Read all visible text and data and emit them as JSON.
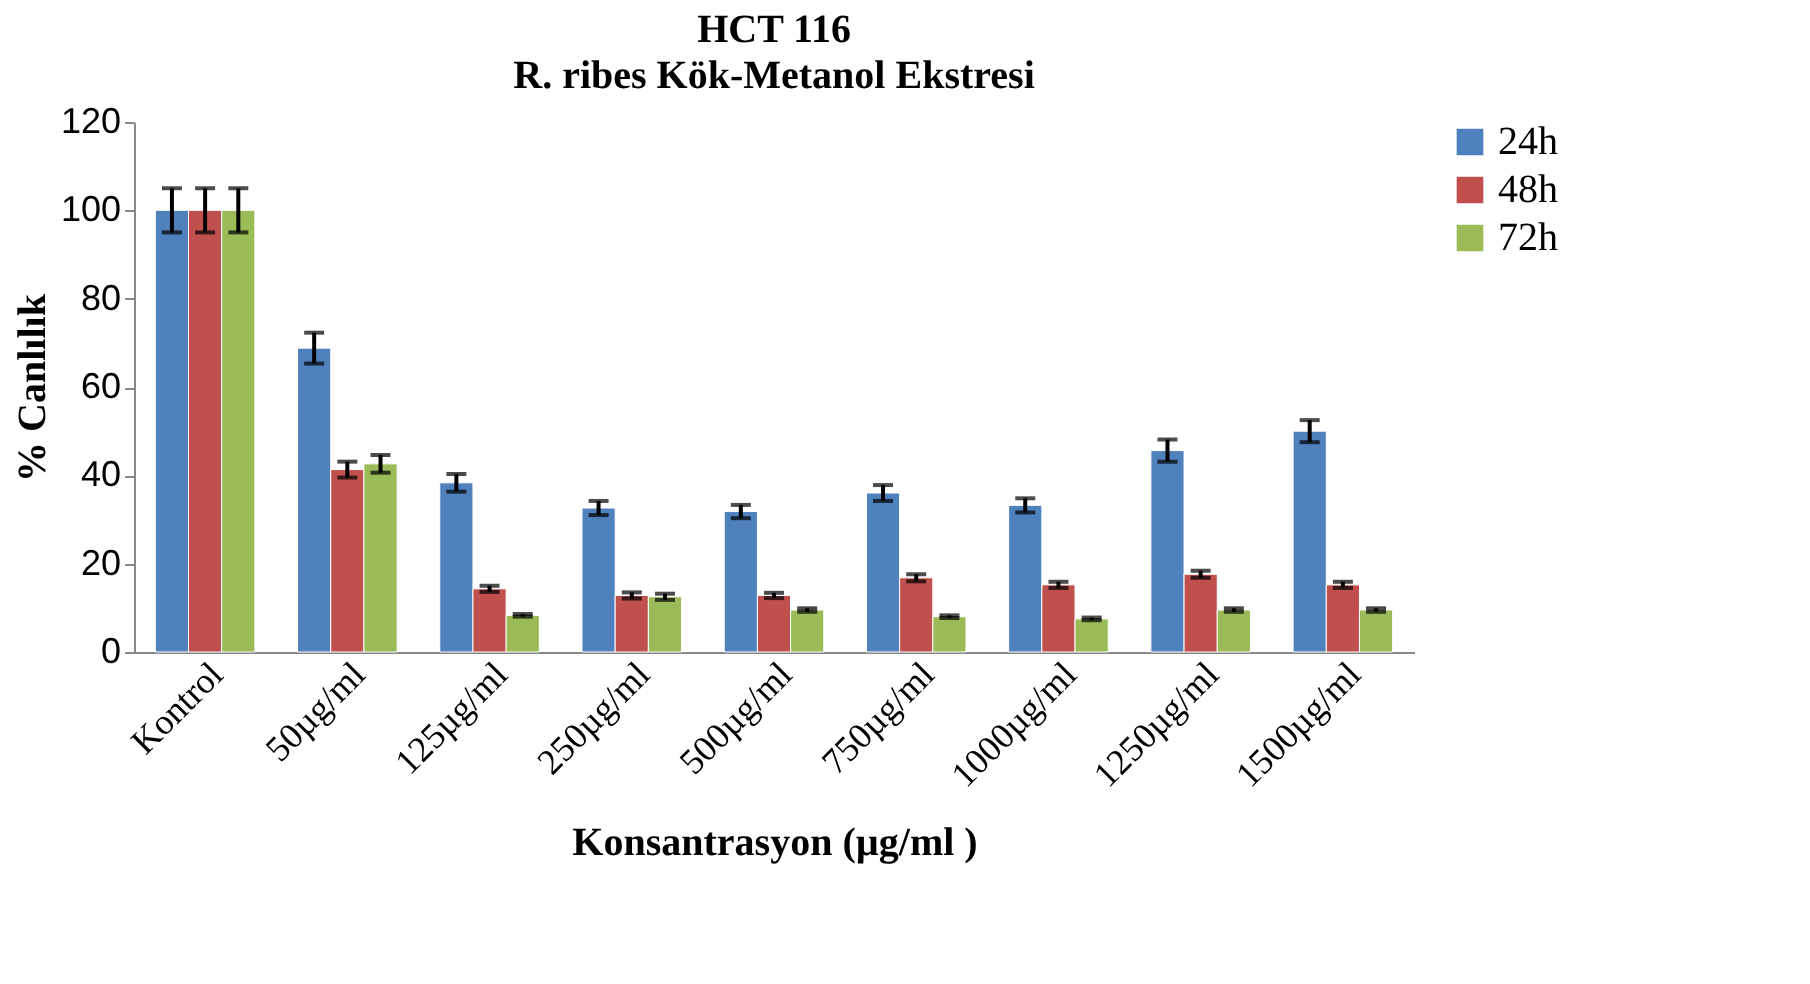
{
  "chart_data": {
    "type": "bar",
    "title": "HCT 116",
    "subtitle": "R. ribes Kök-Metanol Ekstresi",
    "xlabel": "Konsantrasyon (µg/ml )",
    "ylabel": "% Canlılık",
    "categories": [
      "Kontrol",
      "50µg/ml",
      "125µg/ml",
      "250µg/ml",
      "500µg/ml",
      "750µg/ml",
      "1000µg/ml",
      "1250µg/ml",
      "1500µg/ml"
    ],
    "series": [
      {
        "name": "24h",
        "color": "#4f81bd",
        "values": [
          100,
          68.8,
          38.3,
          32.6,
          31.8,
          36,
          33.2,
          45.6,
          50
        ],
        "errors": [
          5,
          3.5,
          2,
          1.6,
          1.5,
          1.8,
          1.6,
          2.5,
          2.5
        ]
      },
      {
        "name": "48h",
        "color": "#c0504d",
        "values": [
          100,
          41.3,
          14.3,
          12.8,
          12.8,
          16.8,
          15.2,
          17.6,
          15.2
        ],
        "errors": [
          5,
          1.8,
          0.7,
          0.7,
          0.6,
          0.8,
          0.7,
          0.8,
          0.7
        ]
      },
      {
        "name": "72h",
        "color": "#9bbb59",
        "values": [
          100,
          42.6,
          8.3,
          12.5,
          9.5,
          8,
          7.5,
          9.5,
          9.5
        ],
        "errors": [
          5,
          2,
          0.3,
          0.7,
          0.4,
          0.3,
          0.3,
          0.4,
          0.4
        ]
      }
    ],
    "ylim": [
      0,
      120
    ],
    "yticks": [
      0,
      20,
      40,
      60,
      80,
      100,
      120
    ],
    "grid": false,
    "legend": "right"
  }
}
